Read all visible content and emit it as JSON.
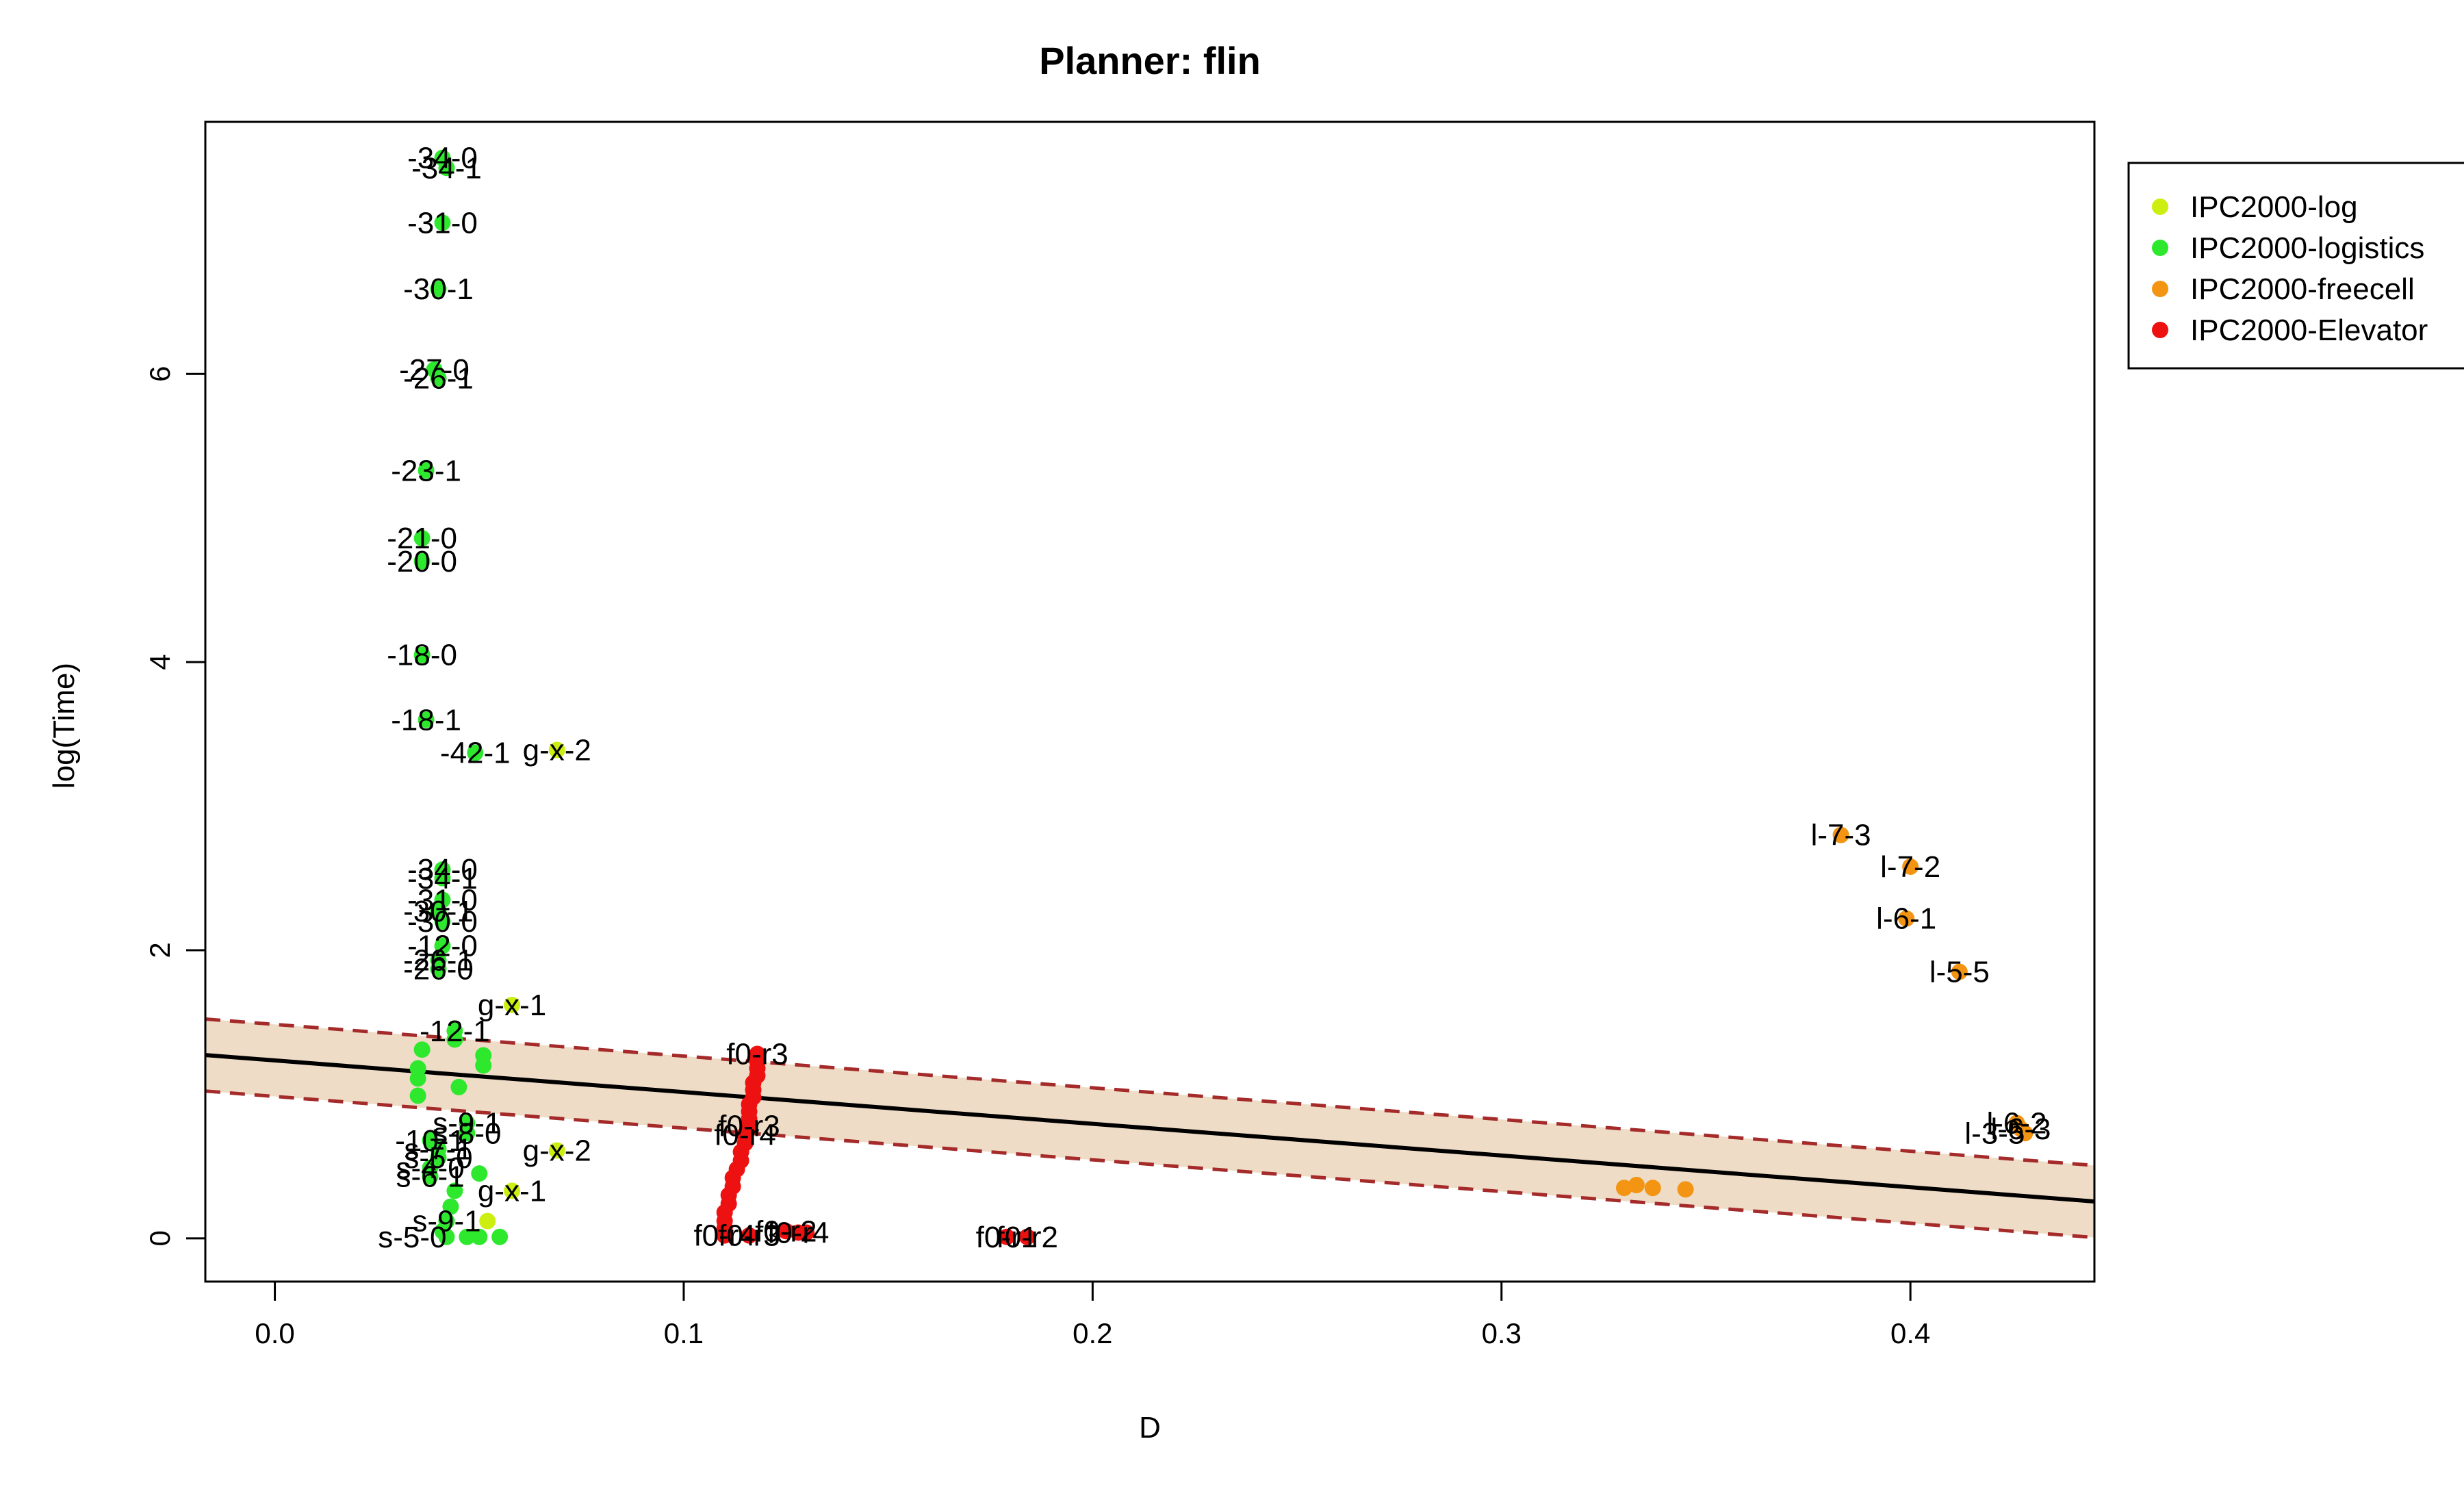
{
  "chart_data": {
    "type": "scatter",
    "title": "Planner: flin",
    "xlabel": "D",
    "ylabel": "log(Time)",
    "xlim": [
      -0.017,
      0.445
    ],
    "ylim": [
      -0.3,
      7.75
    ],
    "xticks": [
      0.0,
      0.1,
      0.2,
      0.3,
      0.4
    ],
    "xtick_labels": [
      "0.0",
      "0.1",
      "0.2",
      "0.3",
      "0.4"
    ],
    "yticks": [
      0,
      2,
      4,
      6
    ],
    "ytick_labels": [
      "0",
      "2",
      "4",
      "6"
    ],
    "grid": false,
    "legend_position": "right, outside plot",
    "regression": {
      "fit": {
        "intercept": 1.235,
        "slope": -2.2
      },
      "band_upper": {
        "intercept": 1.485,
        "slope": -2.2
      },
      "band_lower": {
        "intercept": 0.985,
        "slope": -2.2
      },
      "band_color": "#EEDCC7",
      "fit_color": "#000000",
      "band_line_color": "#A52A2A"
    },
    "series": [
      {
        "name": "IPC2000-log",
        "color": "#CCEE11",
        "points": [
          {
            "x": 0.069,
            "y": 3.39,
            "label": "g-x-2",
            "anchor": "middle"
          },
          {
            "x": 0.058,
            "y": 1.62,
            "label": "g-x-1",
            "anchor": "middle"
          },
          {
            "x": 0.069,
            "y": 0.61,
            "label": "g-x-2",
            "anchor": "middle"
          },
          {
            "x": 0.058,
            "y": 0.33,
            "label": "g-x-1",
            "anchor": "middle"
          },
          {
            "x": 0.052,
            "y": 0.12,
            "label": "",
            "anchor": "middle"
          }
        ]
      },
      {
        "name": "IPC2000-logistics",
        "color": "#2EE82E",
        "points": [
          {
            "x": 0.041,
            "y": 7.5,
            "label": "-34-0",
            "anchor": "middle"
          },
          {
            "x": 0.042,
            "y": 7.43,
            "label": "-34-1",
            "anchor": "middle"
          },
          {
            "x": 0.041,
            "y": 7.05,
            "label": "-31-0",
            "anchor": "middle"
          },
          {
            "x": 0.04,
            "y": 6.59,
            "label": "-30-1",
            "anchor": "middle"
          },
          {
            "x": 0.039,
            "y": 6.03,
            "label": "-27-0",
            "anchor": "middle"
          },
          {
            "x": 0.04,
            "y": 5.97,
            "label": "-26-1",
            "anchor": "middle"
          },
          {
            "x": 0.037,
            "y": 5.33,
            "label": "-23-1",
            "anchor": "middle"
          },
          {
            "x": 0.036,
            "y": 4.86,
            "label": "-21-0",
            "anchor": "middle"
          },
          {
            "x": 0.036,
            "y": 4.7,
            "label": "-20-0",
            "anchor": "middle"
          },
          {
            "x": 0.036,
            "y": 4.05,
            "label": "-18-0",
            "anchor": "middle"
          },
          {
            "x": 0.037,
            "y": 3.6,
            "label": "-18-1",
            "anchor": "middle"
          },
          {
            "x": 0.049,
            "y": 3.37,
            "label": "-42-1",
            "anchor": "middle"
          },
          {
            "x": 0.041,
            "y": 2.56,
            "label": "-34-0",
            "anchor": "middle"
          },
          {
            "x": 0.041,
            "y": 2.5,
            "label": "-34-1",
            "anchor": "middle"
          },
          {
            "x": 0.041,
            "y": 2.35,
            "label": "-31-0",
            "anchor": "middle"
          },
          {
            "x": 0.04,
            "y": 2.27,
            "label": "-30-1",
            "anchor": "middle"
          },
          {
            "x": 0.041,
            "y": 2.2,
            "label": "-30-0",
            "anchor": "middle"
          },
          {
            "x": 0.041,
            "y": 2.03,
            "label": "-12-0",
            "anchor": "middle"
          },
          {
            "x": 0.04,
            "y": 1.93,
            "label": "-26-1",
            "anchor": "middle"
          },
          {
            "x": 0.04,
            "y": 1.87,
            "label": "-26-0",
            "anchor": "middle"
          },
          {
            "x": 0.044,
            "y": 1.44,
            "label": "-12-1",
            "anchor": "middle"
          },
          {
            "x": 0.044,
            "y": 1.38,
            "label": "",
            "anchor": "middle"
          },
          {
            "x": 0.036,
            "y": 1.31,
            "label": "",
            "anchor": "middle"
          },
          {
            "x": 0.051,
            "y": 1.27,
            "label": "",
            "anchor": "middle"
          },
          {
            "x": 0.051,
            "y": 1.2,
            "label": "",
            "anchor": "middle"
          },
          {
            "x": 0.035,
            "y": 1.18,
            "label": "",
            "anchor": "middle"
          },
          {
            "x": 0.035,
            "y": 1.11,
            "label": "",
            "anchor": "middle"
          },
          {
            "x": 0.045,
            "y": 1.05,
            "label": "",
            "anchor": "middle"
          },
          {
            "x": 0.035,
            "y": 0.99,
            "label": "",
            "anchor": "middle"
          },
          {
            "x": 0.047,
            "y": 0.8,
            "label": "s-9-1",
            "anchor": "middle"
          },
          {
            "x": 0.047,
            "y": 0.73,
            "label": "s-8-0",
            "anchor": "middle"
          },
          {
            "x": 0.038,
            "y": 0.68,
            "label": "-10-1",
            "anchor": "middle"
          },
          {
            "x": 0.04,
            "y": 0.62,
            "label": "s-7-1",
            "anchor": "middle"
          },
          {
            "x": 0.04,
            "y": 0.56,
            "label": "s-5-0",
            "anchor": "middle"
          },
          {
            "x": 0.038,
            "y": 0.49,
            "label": "s-4-0",
            "anchor": "middle"
          },
          {
            "x": 0.038,
            "y": 0.43,
            "label": "s-6-1",
            "anchor": "middle"
          },
          {
            "x": 0.05,
            "y": 0.45,
            "label": "",
            "anchor": "middle"
          },
          {
            "x": 0.044,
            "y": 0.33,
            "label": "",
            "anchor": "middle"
          },
          {
            "x": 0.043,
            "y": 0.22,
            "label": "",
            "anchor": "middle"
          },
          {
            "x": 0.042,
            "y": 0.12,
            "label": "s-9-1",
            "anchor": "middle"
          },
          {
            "x": 0.041,
            "y": 0.05,
            "label": "",
            "anchor": "middle"
          },
          {
            "x": 0.042,
            "y": 0.01,
            "label": "s-5-0",
            "anchor": "end"
          },
          {
            "x": 0.047,
            "y": 0.01,
            "label": "",
            "anchor": "middle"
          },
          {
            "x": 0.05,
            "y": 0.01,
            "label": "",
            "anchor": "middle"
          },
          {
            "x": 0.055,
            "y": 0.01,
            "label": "",
            "anchor": "middle"
          }
        ]
      },
      {
        "name": "IPC2000-freecell",
        "color": "#F39412",
        "points": [
          {
            "x": 0.383,
            "y": 2.8,
            "label": "l-7-3",
            "anchor": "middle"
          },
          {
            "x": 0.4,
            "y": 2.58,
            "label": "l-7-2",
            "anchor": "middle"
          },
          {
            "x": 0.399,
            "y": 2.22,
            "label": "l-6-1",
            "anchor": "middle"
          },
          {
            "x": 0.412,
            "y": 1.85,
            "label": "l-5-5",
            "anchor": "middle"
          },
          {
            "x": 0.426,
            "y": 0.8,
            "label": "l-6-2",
            "anchor": "middle"
          },
          {
            "x": 0.427,
            "y": 0.76,
            "label": "l-6-3",
            "anchor": "middle"
          },
          {
            "x": 0.428,
            "y": 0.73,
            "label": "l-3-5",
            "anchor": "end"
          },
          {
            "x": 0.33,
            "y": 0.35,
            "label": "",
            "anchor": "middle"
          },
          {
            "x": 0.333,
            "y": 0.37,
            "label": "",
            "anchor": "middle"
          },
          {
            "x": 0.337,
            "y": 0.35,
            "label": "",
            "anchor": "middle"
          },
          {
            "x": 0.345,
            "y": 0.34,
            "label": "",
            "anchor": "middle"
          }
        ]
      },
      {
        "name": "IPC2000-Elevator",
        "color": "#EE1111",
        "points": [
          {
            "x": 0.118,
            "y": 1.28,
            "label": "f0-r3",
            "anchor": "middle"
          },
          {
            "x": 0.118,
            "y": 1.23,
            "label": "",
            "anchor": "middle"
          },
          {
            "x": 0.118,
            "y": 1.18,
            "label": "",
            "anchor": "middle"
          },
          {
            "x": 0.118,
            "y": 1.13,
            "label": "",
            "anchor": "middle"
          },
          {
            "x": 0.117,
            "y": 1.08,
            "label": "",
            "anchor": "middle"
          },
          {
            "x": 0.117,
            "y": 1.03,
            "label": "",
            "anchor": "middle"
          },
          {
            "x": 0.117,
            "y": 0.98,
            "label": "",
            "anchor": "middle"
          },
          {
            "x": 0.116,
            "y": 0.93,
            "label": "",
            "anchor": "middle"
          },
          {
            "x": 0.116,
            "y": 0.88,
            "label": "",
            "anchor": "middle"
          },
          {
            "x": 0.116,
            "y": 0.83,
            "label": "",
            "anchor": "middle"
          },
          {
            "x": 0.116,
            "y": 0.78,
            "label": "f0-r3",
            "anchor": "middle"
          },
          {
            "x": 0.115,
            "y": 0.72,
            "label": "f0-r4",
            "anchor": "middle"
          },
          {
            "x": 0.115,
            "y": 0.66,
            "label": "",
            "anchor": "middle"
          },
          {
            "x": 0.114,
            "y": 0.6,
            "label": "",
            "anchor": "middle"
          },
          {
            "x": 0.114,
            "y": 0.54,
            "label": "",
            "anchor": "middle"
          },
          {
            "x": 0.113,
            "y": 0.48,
            "label": "",
            "anchor": "middle"
          },
          {
            "x": 0.112,
            "y": 0.42,
            "label": "",
            "anchor": "middle"
          },
          {
            "x": 0.112,
            "y": 0.36,
            "label": "",
            "anchor": "middle"
          },
          {
            "x": 0.111,
            "y": 0.3,
            "label": "",
            "anchor": "middle"
          },
          {
            "x": 0.111,
            "y": 0.24,
            "label": "",
            "anchor": "middle"
          },
          {
            "x": 0.11,
            "y": 0.18,
            "label": "",
            "anchor": "middle"
          },
          {
            "x": 0.11,
            "y": 0.12,
            "label": "",
            "anchor": "middle"
          },
          {
            "x": 0.11,
            "y": 0.07,
            "label": "",
            "anchor": "middle"
          },
          {
            "x": 0.11,
            "y": 0.02,
            "label": "f0-r4",
            "anchor": "middle"
          },
          {
            "x": 0.116,
            "y": 0.02,
            "label": "f0-r3",
            "anchor": "middle"
          },
          {
            "x": 0.125,
            "y": 0.05,
            "label": "f0-r2",
            "anchor": "middle"
          },
          {
            "x": 0.128,
            "y": 0.04,
            "label": "f0-r4",
            "anchor": "middle"
          },
          {
            "x": 0.13,
            "y": 0.04,
            "label": "",
            "anchor": "middle"
          },
          {
            "x": 0.179,
            "y": 0.01,
            "label": "f0-r1",
            "anchor": "middle"
          },
          {
            "x": 0.184,
            "y": 0.01,
            "label": "f0-r2",
            "anchor": "middle"
          }
        ]
      }
    ]
  }
}
